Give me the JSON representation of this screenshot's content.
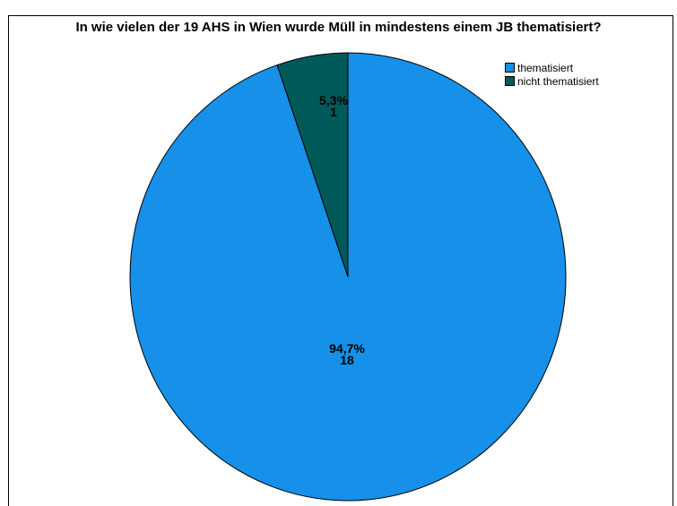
{
  "chart_data": {
    "type": "pie",
    "title": "In wie vielen der 19 AHS in Wien wurde Müll in mindestens einem JB thematisiert?",
    "slices": [
      {
        "name": "thematisiert",
        "value": 18,
        "percent_label": "94,7%",
        "count_label": "18",
        "color": "#1690e8"
      },
      {
        "name": "nicht thematisiert",
        "value": 1,
        "percent_label": "5,3%",
        "count_label": "1",
        "color": "#005a5a"
      }
    ],
    "legend_position": "top-right"
  }
}
